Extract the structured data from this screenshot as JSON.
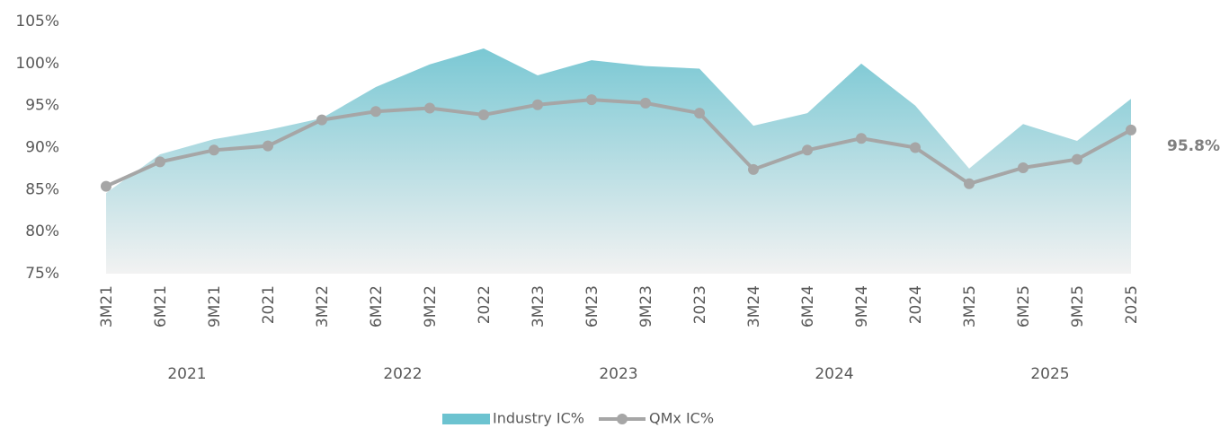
{
  "chart_data": {
    "type": "combo",
    "categories": [
      "3M21",
      "6M21",
      "9M21",
      "2021",
      "3M22",
      "6M22",
      "9M22",
      "2022",
      "3M23",
      "6M23",
      "9M23",
      "2023",
      "3M24",
      "6M24",
      "9M24",
      "2024",
      "3M25",
      "6M25",
      "9M25",
      "2025"
    ],
    "groups": [
      "2021",
      "2022",
      "2023",
      "2024",
      "2025"
    ],
    "series": [
      {
        "name": "Industry IC%",
        "type": "area",
        "color": "#6cc3d0",
        "values": [
          84.6,
          89.2,
          91.0,
          92.1,
          93.5,
          97.2,
          99.9,
          101.8,
          98.6,
          100.4,
          99.7,
          99.4,
          92.6,
          94.1,
          100.0,
          95.0,
          87.5,
          92.8,
          90.8,
          95.8
        ]
      },
      {
        "name": "QMx IC%",
        "type": "line",
        "color": "#a6a6a6",
        "values": [
          85.4,
          88.3,
          89.7,
          90.2,
          93.3,
          94.3,
          94.7,
          93.9,
          95.1,
          95.7,
          95.3,
          94.1,
          87.4,
          89.7,
          91.1,
          90.0,
          85.7,
          87.6,
          88.6,
          92.1
        ]
      }
    ],
    "annotation": "95.8%",
    "ylim": [
      75,
      105
    ],
    "yticks": [
      {
        "value": 75,
        "label": "75%"
      },
      {
        "value": 80,
        "label": "80%"
      },
      {
        "value": 85,
        "label": "85%"
      },
      {
        "value": 90,
        "label": "90%"
      },
      {
        "value": 95,
        "label": "95%"
      },
      {
        "value": 100,
        "label": "100%"
      },
      {
        "value": 105,
        "label": "105%"
      }
    ]
  }
}
